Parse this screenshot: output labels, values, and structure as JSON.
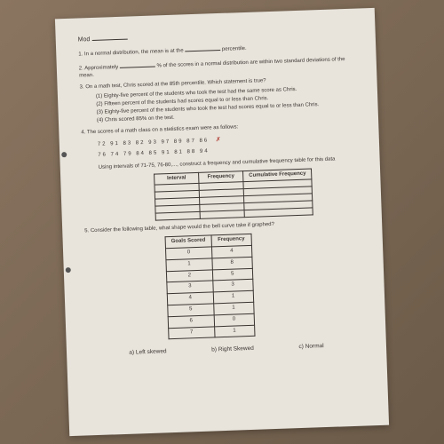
{
  "header": {
    "mod_label": "Mod"
  },
  "q1": {
    "text_before": "1. In a normal distribution, the mean is at the",
    "text_after": "percentile."
  },
  "q2": {
    "text_before": "2. Approximately",
    "text_after": "% of the scores in a normal distribution are within two standard deviations of the mean."
  },
  "q3": {
    "text": "3. On a math test, Chris scored at the 85th percentile. Which statement is true?",
    "options": [
      "(1) Eighty-five percent of the students who took the test had the same score as Chris.",
      "(2) Fifteen percent of the students had scores equal to or less than Chris.",
      "(3) Eighty-five percent of the students who took the test had scores equal to or less than Chris.",
      "(4) Chris scored 85% on the test."
    ]
  },
  "q4": {
    "text": "4. The scores of a math class on a statistics exam were as follows:",
    "data_rows": [
      "72    91    83    82    93    97    89    87    86",
      "76    74    79    84    85    91    81    88    94"
    ],
    "instruction": "Using intervals of 71-75, 76-80,..., construct a frequency and cumulative frequency table for this data",
    "table_headers": [
      "Interval",
      "Frequency",
      "Cumulative Frequency"
    ],
    "blank_rows": 5
  },
  "q5": {
    "text": "5. Consider the following table, what shape would the bell curve take if graphed?",
    "table_headers": [
      "Goals Scored",
      "Frequency"
    ],
    "table_rows": [
      [
        "0",
        "4"
      ],
      [
        "1",
        "8"
      ],
      [
        "2",
        "5"
      ],
      [
        "3",
        "3"
      ],
      [
        "4",
        "1"
      ],
      [
        "5",
        "1"
      ],
      [
        "6",
        "0"
      ],
      [
        "7",
        "1"
      ]
    ],
    "options": [
      "a)   Left skewed",
      "b)  Right Skewed",
      "c)  Normal"
    ]
  },
  "colors": {
    "paper_bg": "#e8e4dc",
    "text": "#3a3530",
    "scribble": "#b0392e"
  }
}
